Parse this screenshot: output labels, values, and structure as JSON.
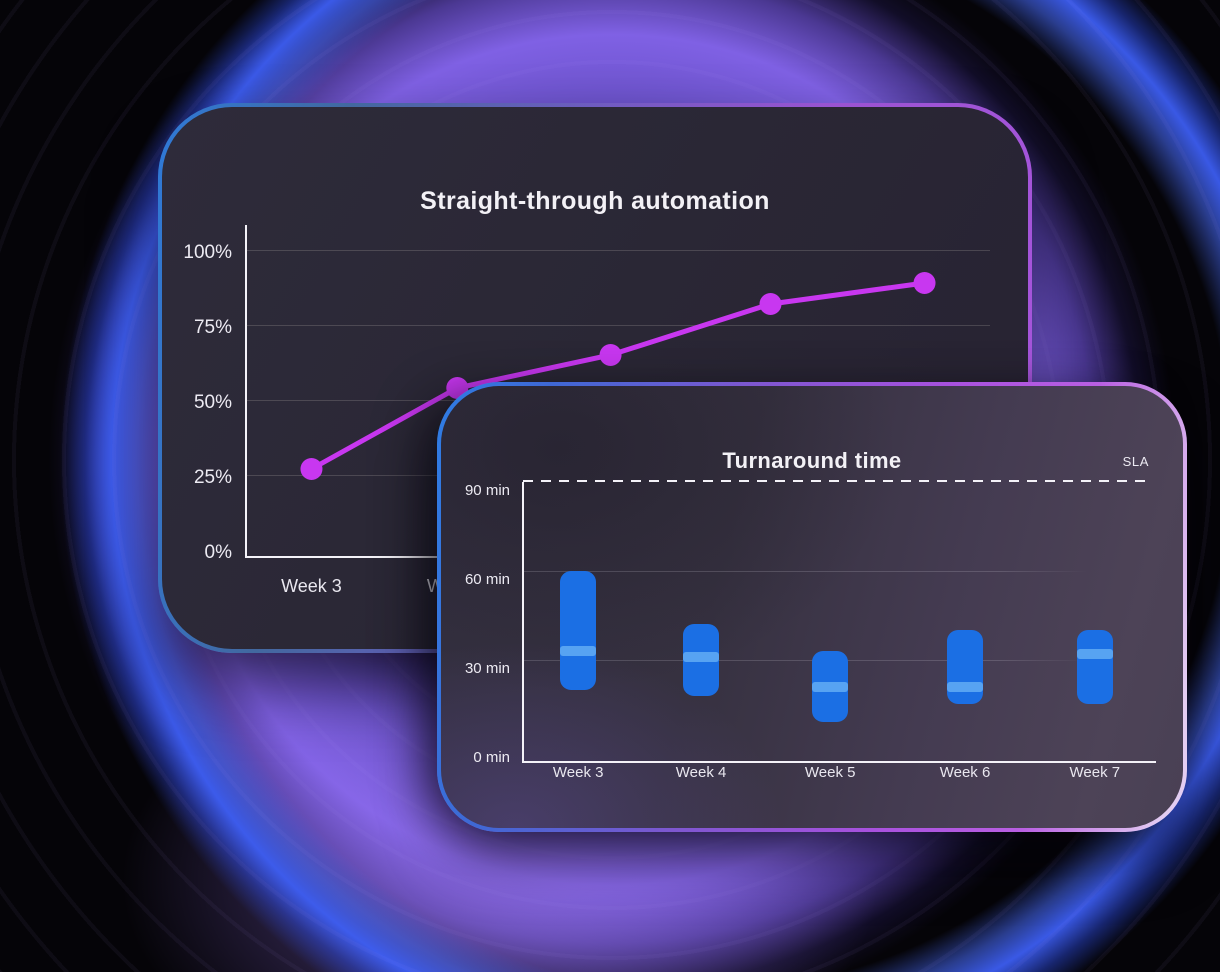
{
  "colors": {
    "line": "#c837f0",
    "bar": "#1b6fe4",
    "bar_band": "#57a3f2",
    "glow_purple": "#8466f0",
    "glow_blue": "#3e60f8",
    "axis": "#f4f2f8"
  },
  "chart_data": [
    {
      "id": "automation",
      "type": "line",
      "title": "Straight-through automation",
      "categories": [
        "Week 3",
        "Week 4",
        "Week 5",
        "Week 6",
        "Week 7"
      ],
      "values": [
        27,
        54,
        65,
        82,
        89
      ],
      "unit": "%",
      "ylim": [
        0,
        100
      ],
      "grid": true,
      "y_ticks": [
        {
          "value": 100,
          "label": "100%"
        },
        {
          "value": 75,
          "label": "75%"
        },
        {
          "value": 50,
          "label": "50%"
        },
        {
          "value": 25,
          "label": "25%"
        },
        {
          "value": 0,
          "label": "0%"
        }
      ]
    },
    {
      "id": "turnaround",
      "type": "range-bar",
      "title": "Turnaround time",
      "categories": [
        "Week 3",
        "Week 4",
        "Week 5",
        "Week 6",
        "Week 7"
      ],
      "series": [
        {
          "name": "low",
          "values": [
            20,
            18,
            9,
            15,
            15
          ]
        },
        {
          "name": "high",
          "values": [
            60,
            42,
            33,
            40,
            40
          ]
        },
        {
          "name": "median",
          "values": [
            33,
            31,
            21,
            21,
            32
          ]
        }
      ],
      "unit": "min",
      "ylim": [
        0,
        90
      ],
      "grid": true,
      "sla": {
        "label": "SLA",
        "value": 90
      },
      "y_ticks": [
        {
          "value": 90,
          "label": "90 min"
        },
        {
          "value": 60,
          "label": "60 min"
        },
        {
          "value": 30,
          "label": "30 min"
        },
        {
          "value": 0,
          "label": "0 min"
        }
      ]
    }
  ]
}
